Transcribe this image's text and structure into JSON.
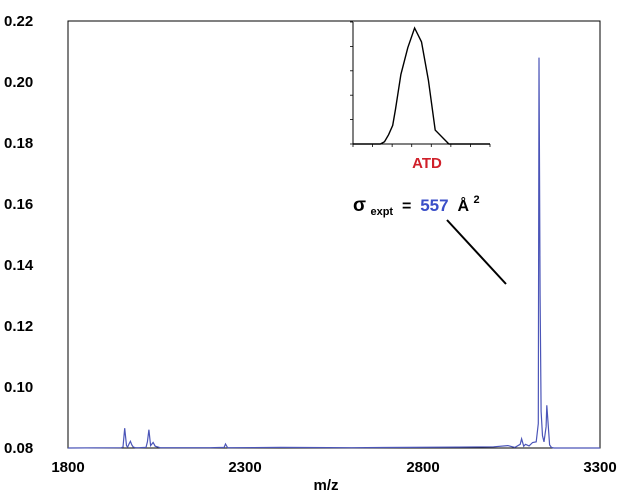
{
  "chart_data": {
    "type": "line",
    "xlabel": "m/z",
    "ylabel": "",
    "title": "",
    "xlim": [
      1800,
      3300
    ],
    "ylim": [
      0.08,
      0.22
    ],
    "x_ticks": [
      "1800",
      "2300",
      "2800",
      "3300"
    ],
    "y_ticks": [
      "0.08",
      "0.10",
      "0.12",
      "0.14",
      "0.16",
      "0.18",
      "0.20",
      "0.22"
    ],
    "grid": false,
    "series": [
      {
        "color": "#4b55b8",
        "x": [
          1800,
          1950,
          1955,
          1960,
          1965,
          1968,
          1972,
          1976,
          1980,
          1984,
          1990,
          2000,
          2020,
          2024,
          2028,
          2033,
          2040,
          2046,
          2060,
          2200,
          2240,
          2244,
          2250,
          2400,
          2600,
          2900,
          3000,
          3040,
          3060,
          3075,
          3079,
          3085,
          3090,
          3100,
          3110,
          3120,
          3126,
          3128,
          3131,
          3134,
          3138,
          3142,
          3148,
          3150,
          3153,
          3158,
          3163,
          3170,
          3200,
          3300
        ],
        "y": [
          0.08,
          0.0801,
          0.0803,
          0.0865,
          0.0808,
          0.0803,
          0.0813,
          0.0822,
          0.081,
          0.0803,
          0.0801,
          0.0801,
          0.0802,
          0.082,
          0.086,
          0.0808,
          0.0818,
          0.0806,
          0.0801,
          0.0801,
          0.0802,
          0.0813,
          0.0801,
          0.0802,
          0.0801,
          0.0803,
          0.0804,
          0.0808,
          0.0802,
          0.0812,
          0.083,
          0.0806,
          0.0812,
          0.0807,
          0.0818,
          0.082,
          0.088,
          0.208,
          0.13,
          0.092,
          0.084,
          0.082,
          0.087,
          0.094,
          0.089,
          0.081,
          0.0802,
          0.08,
          0.08,
          0.08
        ]
      }
    ],
    "inset": {
      "label": "ATD",
      "label_color": "#d0202a",
      "x": [
        0,
        5,
        10,
        15,
        20,
        23,
        26,
        29,
        31,
        33,
        35,
        40,
        45,
        50,
        55,
        60,
        70,
        80,
        90,
        100
      ],
      "y": [
        0,
        0,
        0,
        0,
        0,
        0.02,
        0.08,
        0.16,
        0.3,
        0.45,
        0.6,
        0.83,
        1.0,
        0.88,
        0.55,
        0.12,
        0,
        0,
        0,
        0
      ]
    },
    "annotation": {
      "sigma": "σ",
      "subscript": "expt",
      "equals": " = ",
      "value": "557",
      "value_color": "#3b4fc8",
      "unit": " Å",
      "exponent": "2"
    }
  }
}
